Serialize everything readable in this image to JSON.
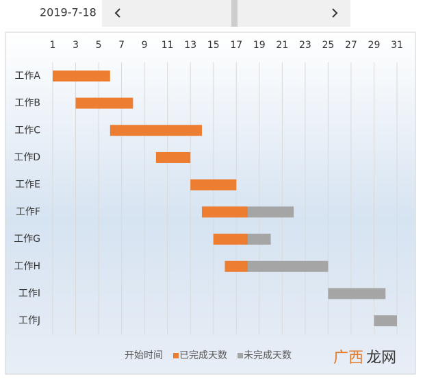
{
  "date_picker": "2019-7-18",
  "watermark": [
    "广西",
    "龙网"
  ],
  "chart_data": {
    "type": "gantt",
    "categories": [
      "工作A",
      "工作B",
      "工作C",
      "工作D",
      "工作E",
      "工作F",
      "工作G",
      "工作H",
      "工作I",
      "工作J"
    ],
    "series": [
      {
        "name": "开始时间",
        "color": "none",
        "values": [
          1,
          3,
          6,
          10,
          13,
          14,
          15,
          16,
          25,
          29
        ]
      },
      {
        "name": "已完成天数",
        "color": "#ed7d31",
        "values": [
          5,
          5,
          8,
          3,
          4,
          4,
          3,
          2,
          0,
          0
        ]
      },
      {
        "name": "未完成天数",
        "color": "#a5a5a5",
        "values": [
          0,
          0,
          0,
          0,
          0,
          4,
          2,
          7,
          5,
          2
        ]
      }
    ],
    "xlim": [
      1,
      31
    ],
    "xticks": [
      1,
      3,
      5,
      7,
      9,
      11,
      13,
      15,
      17,
      19,
      21,
      23,
      25,
      27,
      29,
      31
    ],
    "grid": true,
    "legend": "bottom"
  }
}
